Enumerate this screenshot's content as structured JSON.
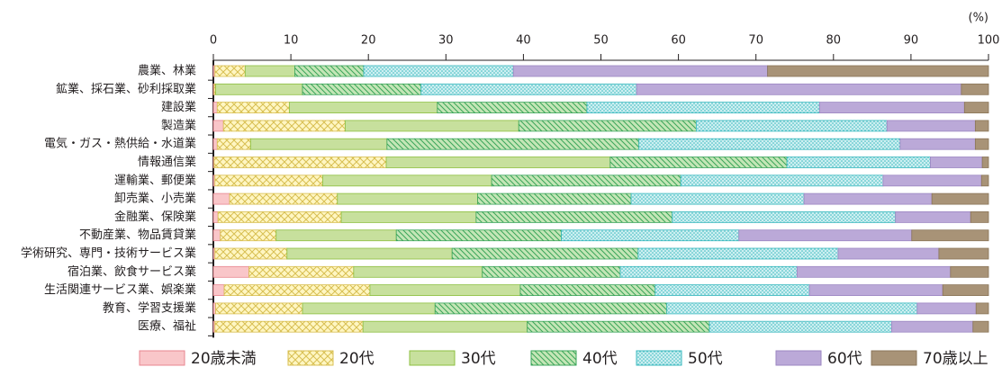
{
  "chart_data": {
    "type": "stacked_barh",
    "unit": "(%)",
    "categories": [
      "農業、林業",
      "鉱業、採石業、砂利採取業",
      "建設業",
      "製造業",
      "電気・ガス・熱供給・水道業",
      "情報通信業",
      "運輸業、郵便業",
      "卸売業、小売業",
      "金融業、保険業",
      "不動産業、物品賃貸業",
      "学術研究、専門・技術サービス業",
      "宿泊業、飲食サービス業",
      "生活関連サービス業、娯楽業",
      "教育、学習支援業",
      "医療、福祉"
    ],
    "series": [
      {
        "name": "20歳未満",
        "color": "#f9c6c9",
        "values": [
          0.2,
          0.1,
          0.5,
          1.3,
          0.5,
          0.1,
          0.2,
          2.1,
          0.6,
          0.9,
          0.2,
          4.6,
          1.4,
          0.3,
          0.2
        ]
      },
      {
        "name": "20代",
        "color": "#fff6c2",
        "values": [
          3.9,
          0.2,
          9.3,
          15.7,
          4.3,
          22.2,
          13.9,
          13.9,
          15.9,
          7.2,
          9.3,
          13.5,
          18.8,
          11.2,
          19.1
        ]
      },
      {
        "name": "30代",
        "color": "#c7e09d",
        "values": [
          6.4,
          11.2,
          19.1,
          22.4,
          17.6,
          28.9,
          21.8,
          18.1,
          17.4,
          15.5,
          21.3,
          16.6,
          19.4,
          17.1,
          21.2
        ]
      },
      {
        "name": "40代",
        "color": "#c4e6b6",
        "values": [
          8.9,
          15.3,
          19.3,
          22.9,
          32.5,
          22.8,
          24.4,
          19.8,
          25.3,
          21.3,
          24.0,
          17.8,
          17.4,
          29.9,
          23.5
        ]
      },
      {
        "name": "50代",
        "color": "#cdeff1",
        "values": [
          19.3,
          27.8,
          30.0,
          24.6,
          33.7,
          18.5,
          26.1,
          22.3,
          28.8,
          22.9,
          25.8,
          22.8,
          19.9,
          32.3,
          23.5
        ]
      },
      {
        "name": "60代",
        "color": "#bba9d8",
        "values": [
          32.8,
          41.9,
          18.7,
          11.4,
          9.7,
          6.7,
          12.7,
          16.5,
          9.7,
          22.3,
          13.0,
          19.8,
          17.2,
          7.6,
          10.5
        ]
      },
      {
        "name": "70歳以上",
        "color": "#a89377",
        "values": [
          28.5,
          3.5,
          3.1,
          1.7,
          1.7,
          0.8,
          0.9,
          7.3,
          2.3,
          9.9,
          6.4,
          4.9,
          5.9,
          1.6,
          2.0
        ]
      }
    ],
    "xlim": [
      0,
      100
    ],
    "xticks": [
      0,
      10,
      20,
      30,
      40,
      50,
      60,
      70,
      80,
      90,
      100
    ],
    "grid": false
  }
}
